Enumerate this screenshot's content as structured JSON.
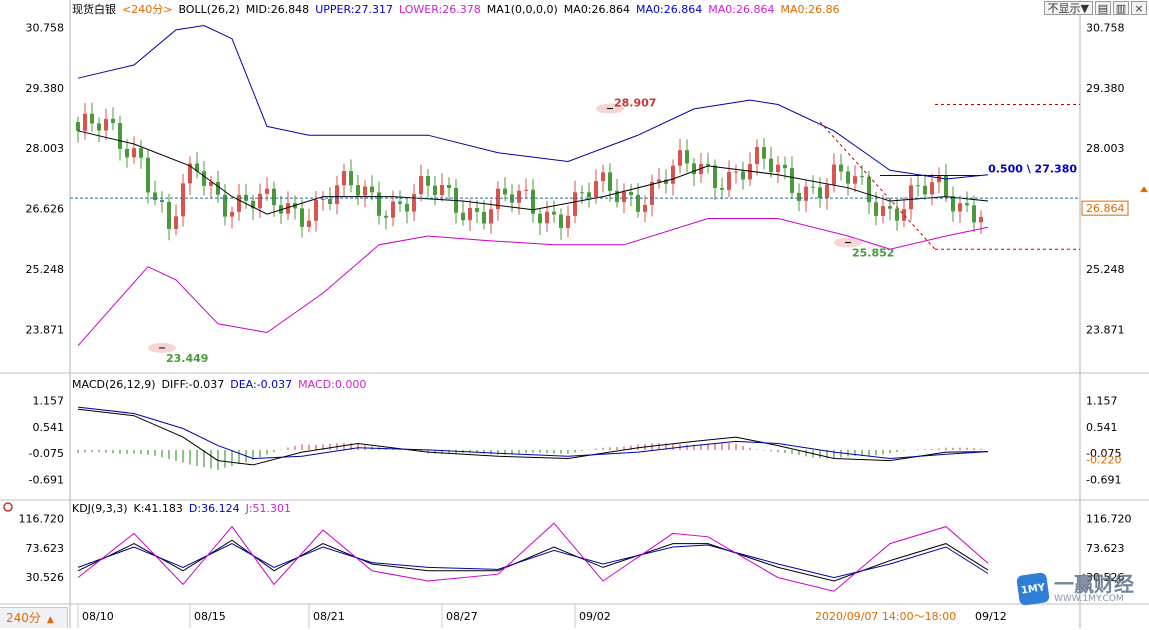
{
  "main_header": [
    {
      "text": "现货白银",
      "color": "#000000"
    },
    {
      "text": "<240分>",
      "color": "#e06a00"
    },
    {
      "text": "BOLL(26,2)",
      "color": "#000000"
    },
    {
      "text": "MID:26.848",
      "color": "#000000"
    },
    {
      "text": "UPPER:27.317",
      "color": "#0000cc"
    },
    {
      "text": "LOWER:26.378",
      "color": "#d020d0"
    },
    {
      "text": "MA1(0,0,0,0)",
      "color": "#000000"
    },
    {
      "text": "MA0:26.864",
      "color": "#000000"
    },
    {
      "text": "MA0:26.864",
      "color": "#0000cc"
    },
    {
      "text": "MA0:26.864",
      "color": "#d020d0"
    },
    {
      "text": "MA0:26.86",
      "color": "#e06a00"
    }
  ],
  "macd_header": [
    {
      "text": "MACD(26,12,9)",
      "color": "#000000"
    },
    {
      "text": "DIFF:-0.037",
      "color": "#000000"
    },
    {
      "text": "DEA:-0.037",
      "color": "#0000cc"
    },
    {
      "text": "MACD:0.000",
      "color": "#d020d0"
    }
  ],
  "kdj_header": [
    {
      "text": "KDJ(9,3,3)",
      "color": "#000000"
    },
    {
      "text": "K:41.183",
      "color": "#000000"
    },
    {
      "text": "D:36.124",
      "color": "#0000cc"
    },
    {
      "text": "J:51.301",
      "color": "#d020d0"
    }
  ],
  "toolbar": {
    "hide_label": "不显示▼",
    "period_label": "240分",
    "period_arrow": "▲"
  },
  "logo": {
    "text": "一赢财经",
    "sub": "WWW.1MY.COM",
    "badge": "1MY"
  },
  "colors": {
    "up": "#d9534f",
    "down": "#4a9a3c",
    "mid": "#000000",
    "upper": "#0000aa",
    "lower": "#cc00cc",
    "accent": "#e06a00"
  },
  "chart_data": [
    {
      "type": "candlestick",
      "title": "现货白银 240分",
      "ylim": [
        22.9,
        31.2
      ],
      "y_ticks": [
        "30.758",
        "29.380",
        "28.003",
        "26.626",
        "25.248",
        "23.871"
      ],
      "x_ticks": [
        "08/10",
        "08/15",
        "08/21",
        "08/27",
        "09/02",
        "2020/09/07 14:00～18:00",
        "09/12"
      ],
      "bollinger": {
        "mid": [
          [
            0,
            28.4
          ],
          [
            8,
            28.1
          ],
          [
            16,
            27.6
          ],
          [
            22,
            26.9
          ],
          [
            27,
            26.5
          ],
          [
            35,
            26.9
          ],
          [
            45,
            26.9
          ],
          [
            55,
            26.8
          ],
          [
            65,
            26.6
          ],
          [
            75,
            26.9
          ],
          [
            85,
            27.3
          ],
          [
            90,
            27.6
          ],
          [
            100,
            27.4
          ],
          [
            110,
            27.1
          ],
          [
            116,
            26.8
          ],
          [
            124,
            26.9
          ],
          [
            130,
            26.8
          ]
        ],
        "upper": [
          [
            0,
            29.6
          ],
          [
            8,
            29.9
          ],
          [
            14,
            30.7
          ],
          [
            18,
            30.8
          ],
          [
            22,
            30.5
          ],
          [
            27,
            28.5
          ],
          [
            33,
            28.3
          ],
          [
            40,
            28.3
          ],
          [
            50,
            28.3
          ],
          [
            60,
            27.9
          ],
          [
            70,
            27.7
          ],
          [
            80,
            28.3
          ],
          [
            88,
            28.9
          ],
          [
            96,
            29.1
          ],
          [
            100,
            29.0
          ],
          [
            108,
            28.4
          ],
          [
            116,
            27.5
          ],
          [
            124,
            27.3
          ],
          [
            130,
            27.4
          ]
        ],
        "lower": [
          [
            0,
            23.5
          ],
          [
            10,
            25.3
          ],
          [
            14,
            25.0
          ],
          [
            20,
            24.0
          ],
          [
            27,
            23.8
          ],
          [
            35,
            24.7
          ],
          [
            43,
            25.8
          ],
          [
            50,
            26.0
          ],
          [
            58,
            25.9
          ],
          [
            68,
            25.8
          ],
          [
            78,
            25.8
          ],
          [
            90,
            26.4
          ],
          [
            100,
            26.4
          ],
          [
            110,
            26.0
          ],
          [
            116,
            25.7
          ],
          [
            124,
            26.0
          ],
          [
            130,
            26.2
          ]
        ]
      },
      "reference_lines": [
        {
          "value": 29.0,
          "color": "#cc0000"
        },
        {
          "value": 25.7,
          "color": "#cc0000"
        },
        {
          "value": 26.864,
          "color": "#1a6fa0"
        }
      ],
      "trendline": {
        "label": "0.500 \\ 27.380",
        "value": 27.38
      },
      "current_price": "26.864",
      "annotations": [
        {
          "text": "28.907",
          "value": 28.907,
          "color": "#cc3333"
        },
        {
          "text": "23.449",
          "value": 23.449,
          "color": "#4a9a3c"
        },
        {
          "text": "25.852",
          "value": 25.852,
          "color": "#4a9a3c"
        }
      ]
    },
    {
      "type": "line",
      "title": "MACD(26,12,9)",
      "ylim": [
        -1.1,
        1.4
      ],
      "y_ticks": [
        "1.157",
        "0.541",
        "-0.075",
        "-0.691"
      ],
      "right_labels": [
        {
          "text": "-0.220",
          "color": "#e06a00"
        }
      ],
      "series": [
        {
          "name": "DIFF",
          "values": [
            [
              0,
              0.95
            ],
            [
              8,
              0.8
            ],
            [
              15,
              0.3
            ],
            [
              20,
              -0.25
            ],
            [
              25,
              -0.35
            ],
            [
              32,
              -0.05
            ],
            [
              40,
              0.15
            ],
            [
              50,
              -0.05
            ],
            [
              60,
              -0.15
            ],
            [
              70,
              -0.2
            ],
            [
              80,
              0.05
            ],
            [
              88,
              0.2
            ],
            [
              94,
              0.3
            ],
            [
              100,
              0.1
            ],
            [
              108,
              -0.2
            ],
            [
              116,
              -0.25
            ],
            [
              124,
              -0.05
            ],
            [
              130,
              -0.04
            ]
          ]
        },
        {
          "name": "DEA",
          "values": [
            [
              0,
              1.0
            ],
            [
              8,
              0.85
            ],
            [
              15,
              0.5
            ],
            [
              20,
              0.1
            ],
            [
              25,
              -0.2
            ],
            [
              32,
              -0.15
            ],
            [
              40,
              0.05
            ],
            [
              50,
              0.0
            ],
            [
              60,
              -0.08
            ],
            [
              70,
              -0.15
            ],
            [
              80,
              -0.05
            ],
            [
              88,
              0.1
            ],
            [
              94,
              0.2
            ],
            [
              100,
              0.15
            ],
            [
              108,
              -0.05
            ],
            [
              116,
              -0.2
            ],
            [
              124,
              -0.1
            ],
            [
              130,
              -0.04
            ]
          ]
        }
      ]
    },
    {
      "type": "line",
      "title": "KDJ(9,3,3)",
      "ylim": [
        0,
        125
      ],
      "y_ticks": [
        "116.720",
        "73.623",
        "30.526"
      ],
      "series": [
        {
          "name": "K",
          "values": [
            [
              0,
              40
            ],
            [
              8,
              80
            ],
            [
              15,
              40
            ],
            [
              22,
              85
            ],
            [
              28,
              40
            ],
            [
              35,
              80
            ],
            [
              42,
              50
            ],
            [
              50,
              40
            ],
            [
              60,
              40
            ],
            [
              68,
              75
            ],
            [
              75,
              45
            ],
            [
              85,
              80
            ],
            [
              90,
              80
            ],
            [
              100,
              45
            ],
            [
              108,
              25
            ],
            [
              116,
              55
            ],
            [
              124,
              80
            ],
            [
              130,
              41
            ]
          ]
        },
        {
          "name": "D",
          "values": [
            [
              0,
              45
            ],
            [
              8,
              75
            ],
            [
              15,
              45
            ],
            [
              22,
              80
            ],
            [
              28,
              45
            ],
            [
              35,
              75
            ],
            [
              42,
              52
            ],
            [
              50,
              45
            ],
            [
              60,
              42
            ],
            [
              68,
              70
            ],
            [
              75,
              50
            ],
            [
              85,
              75
            ],
            [
              90,
              78
            ],
            [
              100,
              50
            ],
            [
              108,
              30
            ],
            [
              116,
              50
            ],
            [
              124,
              75
            ],
            [
              130,
              36
            ]
          ]
        },
        {
          "name": "J",
          "values": [
            [
              0,
              30
            ],
            [
              8,
              95
            ],
            [
              15,
              20
            ],
            [
              22,
              105
            ],
            [
              28,
              20
            ],
            [
              35,
              100
            ],
            [
              42,
              40
            ],
            [
              50,
              25
            ],
            [
              60,
              35
            ],
            [
              68,
              110
            ],
            [
              75,
              25
            ],
            [
              85,
              95
            ],
            [
              90,
              90
            ],
            [
              100,
              30
            ],
            [
              108,
              10
            ],
            [
              116,
              80
            ],
            [
              124,
              105
            ],
            [
              130,
              51
            ]
          ]
        }
      ]
    }
  ]
}
